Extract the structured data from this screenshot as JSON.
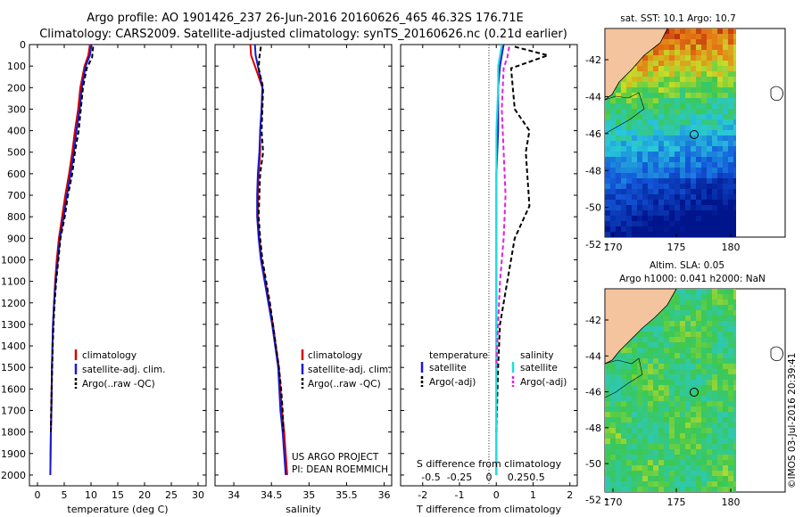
{
  "header": {
    "line1": "Argo profile: AO 1901426_237 26-Jun-2016 20160626_465 46.32S 176.71E",
    "line2": "Climatology: CARS2009. Satellite-adjusted climatology: synTS_20160626.nc (0.21d earlier)"
  },
  "colors": {
    "clim": "#d40000",
    "sat": "#1a1ad0",
    "argo": "#000000",
    "sat_s": "#22dddd",
    "argo_s": "#dd22dd",
    "land": "#f4c49e"
  },
  "chart_data": [
    {
      "type": "line",
      "title": "",
      "xlabel": "temperature (deg C)",
      "ylabel": "",
      "xlim": [
        -1.5,
        31.5
      ],
      "ylim": [
        2050,
        0
      ],
      "xticks": [
        0,
        5,
        10,
        15,
        20,
        25,
        30
      ],
      "yticks": [
        0,
        100,
        200,
        300,
        400,
        500,
        600,
        700,
        800,
        900,
        1000,
        1100,
        1200,
        1300,
        1400,
        1500,
        1600,
        1700,
        1800,
        1900,
        2000
      ],
      "series": [
        {
          "name": "climatology",
          "color": "#d40000",
          "style": "solid",
          "x": [
            9.8,
            9.5,
            8.8,
            8.0,
            7.6,
            7.0,
            6.5,
            5.9,
            5.2,
            4.6,
            4.0,
            3.6,
            3.3,
            3.1,
            2.9,
            2.8,
            2.7,
            2.6,
            2.5,
            2.45,
            2.4
          ],
          "depth": [
            0,
            50,
            100,
            200,
            300,
            400,
            500,
            600,
            700,
            800,
            900,
            1000,
            1100,
            1200,
            1300,
            1400,
            1500,
            1700,
            1800,
            1900,
            2000
          ]
        },
        {
          "name": "satellite-adj. clim.",
          "color": "#1a1ad0",
          "style": "solid",
          "x": [
            10.1,
            9.8,
            9.0,
            8.3,
            7.9,
            7.3,
            6.8,
            6.2,
            5.5,
            4.9,
            4.2,
            3.8,
            3.4,
            3.1,
            2.9,
            2.8,
            2.7,
            2.6,
            2.5,
            2.45,
            2.4
          ],
          "depth": [
            0,
            50,
            100,
            200,
            300,
            400,
            500,
            600,
            700,
            800,
            900,
            1000,
            1100,
            1200,
            1300,
            1400,
            1500,
            1700,
            1800,
            1900,
            2000
          ]
        },
        {
          "name": "Argo(..raw -QC)",
          "color": "#000000",
          "style": "dash",
          "x": [
            10.4,
            10.2,
            9.2,
            8.5,
            8.1,
            7.7,
            7.0,
            6.5,
            5.7,
            5.1,
            4.3,
            3.9,
            3.5,
            3.2,
            3.0,
            2.85,
            2.75,
            2.65,
            2.55,
            2.5
          ],
          "depth": [
            10,
            60,
            110,
            200,
            300,
            400,
            500,
            600,
            700,
            800,
            900,
            1000,
            1100,
            1200,
            1300,
            1400,
            1500,
            1600,
            1700,
            1800
          ]
        }
      ],
      "legend": [
        "climatology",
        "satellite-adj. clim.",
        "Argo(..raw -QC)"
      ],
      "legend_position": "lower-right"
    },
    {
      "type": "line",
      "xlabel": "salinity",
      "xlim": [
        33.75,
        36.1
      ],
      "ylim": [
        2050,
        0
      ],
      "xticks": [
        34,
        34.5,
        35,
        35.5,
        36
      ],
      "series": [
        {
          "name": "climatology",
          "color": "#d40000",
          "style": "solid",
          "x": [
            34.22,
            34.23,
            34.28,
            34.38,
            34.37,
            34.35,
            34.35,
            34.33,
            34.32,
            34.32,
            34.34,
            34.37,
            34.42,
            34.47,
            34.52,
            34.56,
            34.6,
            34.64,
            34.67,
            34.69,
            34.71
          ],
          "depth": [
            0,
            50,
            100,
            200,
            300,
            400,
            500,
            600,
            700,
            800,
            900,
            1000,
            1100,
            1200,
            1300,
            1400,
            1500,
            1700,
            1800,
            1900,
            2000
          ]
        },
        {
          "name": "satellite-adj. clim.",
          "color": "#1a1ad0",
          "style": "solid",
          "x": [
            34.28,
            34.29,
            34.32,
            34.38,
            34.37,
            34.35,
            34.34,
            34.32,
            34.31,
            34.31,
            34.33,
            34.36,
            34.41,
            34.46,
            34.51,
            34.55,
            34.59,
            34.62,
            34.65,
            34.67,
            34.69
          ],
          "depth": [
            0,
            50,
            100,
            200,
            300,
            400,
            500,
            600,
            700,
            800,
            900,
            1000,
            1100,
            1200,
            1300,
            1400,
            1500,
            1700,
            1800,
            1900,
            2000
          ]
        },
        {
          "name": "Argo(..raw -QC)",
          "color": "#000000",
          "style": "dash",
          "x": [
            34.36,
            34.34,
            34.33,
            34.39,
            34.38,
            34.37,
            34.39,
            34.35,
            34.34,
            34.33,
            34.35,
            34.38,
            34.43,
            34.48,
            34.52,
            34.56,
            34.6,
            34.63,
            34.65,
            34.66
          ],
          "depth": [
            10,
            60,
            110,
            200,
            300,
            400,
            500,
            600,
            700,
            800,
            900,
            1000,
            1100,
            1200,
            1300,
            1400,
            1500,
            1600,
            1700,
            1800
          ]
        }
      ],
      "legend": [
        "climatology",
        "satellite-adj. clim.",
        "Argo(..raw -QC)"
      ],
      "legend_position": "lower-right",
      "annotation": [
        "US ARGO PROJECT",
        "PI: DEAN ROEMMICH"
      ]
    },
    {
      "type": "line",
      "xlabel": "T difference from climatology",
      "xlabel_top": "S difference from climatology",
      "xlim": [
        -2.6,
        2.2
      ],
      "ylim": [
        2050,
        0
      ],
      "xticks": [
        -2,
        -1,
        0,
        1,
        2
      ],
      "xticks_s": [
        "-0.5",
        "-0.25",
        "0",
        "0.25",
        "0.5"
      ],
      "series": [
        {
          "name": "temperature satellite",
          "color": "#1a1ad0",
          "style": "solid",
          "x": [
            0.2,
            0.15,
            0.1,
            0.05,
            0.05,
            0.0,
            0.0,
            0.0,
            0.0,
            0.0,
            0.0,
            0.0
          ],
          "depth": [
            0,
            50,
            100,
            200,
            400,
            600,
            800,
            1000,
            1300,
            1600,
            1800,
            2000
          ]
        },
        {
          "name": "temperature Argo(-adj)",
          "color": "#000000",
          "style": "dash",
          "x": [
            0.5,
            1.4,
            0.4,
            0.5,
            0.9,
            0.8,
            0.9,
            0.5,
            0.3,
            0.1,
            0.05,
            0.0
          ],
          "depth": [
            10,
            50,
            110,
            300,
            400,
            500,
            750,
            900,
            1100,
            1300,
            1500,
            1800
          ]
        },
        {
          "name": "salinity satellite",
          "color": "#22dddd",
          "style": "solid",
          "x": [
            0.15,
            0.1,
            0.05,
            0.05,
            0.0,
            0.0,
            0.0,
            0.0,
            0.0,
            0.0,
            0.0,
            0.0
          ],
          "depth": [
            0,
            50,
            100,
            200,
            400,
            600,
            800,
            1000,
            1300,
            1600,
            1800,
            2000
          ]
        },
        {
          "name": "salinity Argo(-adj)",
          "color": "#dd22dd",
          "style": "dash",
          "x": [
            0.35,
            0.3,
            0.2,
            0.15,
            0.2,
            0.25,
            0.2,
            0.1,
            0.05,
            0.0
          ],
          "depth": [
            10,
            60,
            110,
            300,
            500,
            700,
            900,
            1100,
            1300,
            1500
          ]
        }
      ],
      "legend_temp_title": "temperature",
      "legend_sal_title": "salinity",
      "legend_items": [
        "satellite",
        "Argo(-adj)"
      ]
    }
  ],
  "maps": {
    "sst": {
      "title": "sat. SST: 10.1  Argo: 10.7",
      "xticks": [
        "170",
        "175",
        "180"
      ],
      "yticks": [
        "-42",
        "-44",
        "-46",
        "-48",
        "-50",
        "-52"
      ]
    },
    "sla": {
      "title1": "Altim. SLA: 0.05",
      "title2": "Argo h1000: 0.041 h2000: NaN",
      "xticks": [
        "170",
        "175",
        "180"
      ],
      "yticks": [
        "-42",
        "-44",
        "-46",
        "-48",
        "-50",
        "-52"
      ]
    }
  },
  "credit": "©IMOS 03-Jul-2016 20:39:41"
}
